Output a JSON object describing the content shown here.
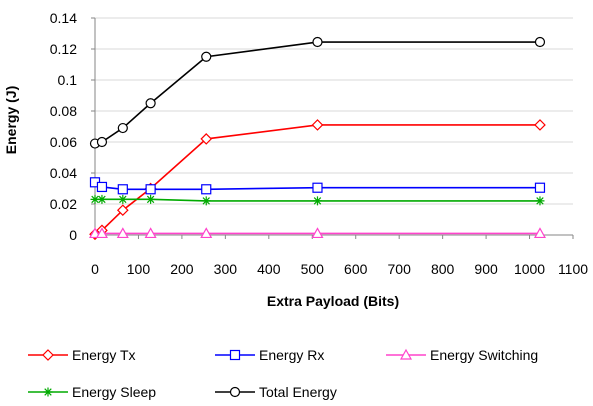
{
  "chart_data": {
    "type": "line",
    "title": "",
    "xlabel": "Extra Payload (Bits)",
    "ylabel": "Energy (J)",
    "xlim": [
      0,
      1100
    ],
    "ylim": [
      0,
      0.14
    ],
    "xticks": [
      0,
      100,
      200,
      300,
      400,
      500,
      600,
      700,
      800,
      900,
      1000,
      1100
    ],
    "yticks": [
      0,
      0.02,
      0.04,
      0.06,
      0.08,
      0.1,
      0.12,
      0.14
    ],
    "xtick_labels": [
      "0",
      "100",
      "200",
      "300",
      "400",
      "500",
      "600",
      "700",
      "800",
      "900",
      "1000",
      "1100"
    ],
    "ytick_labels": [
      "0",
      "0.02",
      "0.04",
      "0.06",
      "0.08",
      "0.1",
      "0.12",
      "0.14"
    ],
    "grid": "horizontal",
    "legend_position": "bottom",
    "x": [
      0,
      16,
      64,
      128,
      256,
      512,
      1024
    ],
    "series": [
      {
        "name": "Energy Tx",
        "color": "#ff0000",
        "marker": "diamond",
        "values": [
          0.0005,
          0.003,
          0.016,
          0.03,
          0.062,
          0.071,
          0.071
        ]
      },
      {
        "name": "Energy Rx",
        "color": "#0000ff",
        "marker": "square",
        "values": [
          0.034,
          0.031,
          0.0295,
          0.0295,
          0.0295,
          0.0305,
          0.0305
        ]
      },
      {
        "name": "Energy Switching",
        "color": "#ff44cc",
        "marker": "triangle",
        "values": [
          0.001,
          0.001,
          0.001,
          0.001,
          0.001,
          0.001,
          0.001
        ]
      },
      {
        "name": "Energy Sleep",
        "color": "#00aa00",
        "marker": "asterisk",
        "values": [
          0.023,
          0.023,
          0.023,
          0.023,
          0.022,
          0.022,
          0.022
        ]
      },
      {
        "name": "Total Energy",
        "color": "#000000",
        "marker": "circle",
        "values": [
          0.059,
          0.06,
          0.069,
          0.085,
          0.115,
          0.1245,
          0.1245
        ]
      }
    ]
  }
}
